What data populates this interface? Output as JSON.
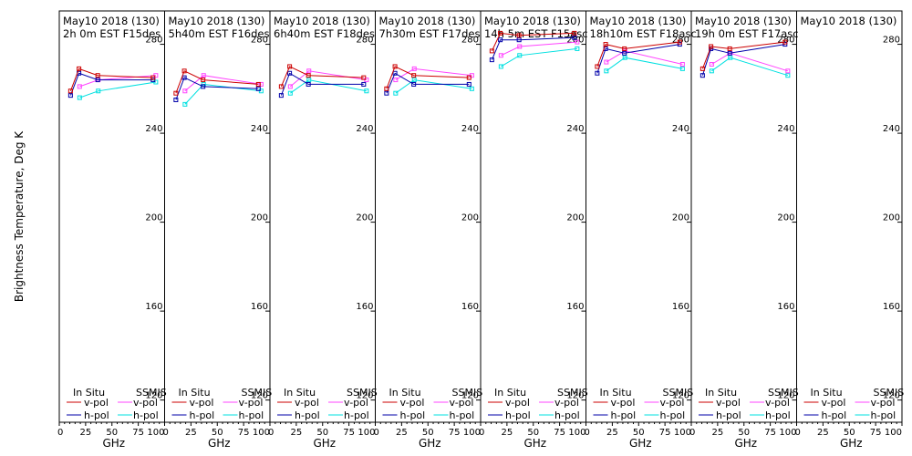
{
  "chart_data": {
    "type": "line",
    "ylabel": "Brightness Temperature, Deg K",
    "xlabel": "GHz",
    "ylim": [
      110,
      295
    ],
    "xlim": [
      0,
      100
    ],
    "yticks": [
      120,
      160,
      200,
      240,
      280
    ],
    "xticks": [
      0,
      25,
      50,
      75,
      100
    ],
    "xtick_labels": [
      "0",
      "25",
      "50",
      "75",
      "100"
    ],
    "colors": {
      "insitu_vpol": "#cc0000",
      "insitu_hpol": "#0000aa",
      "ssmis_vpol": "#ff44ff",
      "ssmis_hpol": "#00e0e0"
    },
    "legend": {
      "insitu_title": "In Situ",
      "ssmis_title": "SSMIS",
      "vpol": "v-pol",
      "hpol": "h-pol"
    },
    "panels": [
      {
        "date": "May10 2018 (130)",
        "subtitle": "2h 0m  EST F15des",
        "insitu_x": [
          10.7,
          18.7,
          36.5,
          89
        ],
        "insitu_v": [
          259,
          269,
          266,
          265
        ],
        "insitu_h": [
          257,
          267,
          264,
          264
        ],
        "ssmis_x": [
          19.35,
          37,
          91.65
        ],
        "ssmis_v": [
          261,
          264,
          266
        ],
        "ssmis_h": [
          256,
          259,
          263
        ]
      },
      {
        "date": "May10 2018 (130)",
        "subtitle": "5h40m  EST F16des",
        "insitu_x": [
          10.7,
          18.7,
          36.5,
          89
        ],
        "insitu_v": [
          258,
          268,
          264,
          262
        ],
        "insitu_h": [
          255,
          265,
          261,
          260
        ],
        "ssmis_x": [
          19.35,
          37,
          91.65
        ],
        "ssmis_v": [
          259,
          266,
          262
        ],
        "ssmis_h": [
          253,
          262,
          259
        ]
      },
      {
        "date": "May10 2018 (130)",
        "subtitle": "6h40m  EST F18des",
        "insitu_x": [
          10.7,
          18.7,
          36.5,
          89
        ],
        "insitu_v": [
          261,
          270,
          266,
          265
        ],
        "insitu_h": [
          257,
          267,
          262,
          262
        ],
        "ssmis_x": [
          19.35,
          37,
          91.65
        ],
        "ssmis_v": [
          261,
          268,
          264
        ],
        "ssmis_h": [
          258,
          264,
          259
        ]
      },
      {
        "date": "May10 2018 (130)",
        "subtitle": "7h30m  EST F17des",
        "insitu_x": [
          10.7,
          18.7,
          36.5,
          89
        ],
        "insitu_v": [
          260,
          270,
          266,
          265
        ],
        "insitu_h": [
          258,
          267,
          262,
          262
        ],
        "ssmis_x": [
          19.35,
          37,
          91.65
        ],
        "ssmis_v": [
          264,
          269,
          266
        ],
        "ssmis_h": [
          258,
          264,
          260
        ]
      },
      {
        "date": "May10 2018 (130)",
        "subtitle": "14h 5m  EST F15asc",
        "insitu_x": [
          10.7,
          18.7,
          36.5,
          89
        ],
        "insitu_v": [
          277,
          285,
          284,
          285
        ],
        "insitu_h": [
          273,
          282,
          282,
          283
        ],
        "ssmis_x": [
          19.35,
          37,
          91.65
        ],
        "ssmis_v": [
          275,
          279,
          281
        ],
        "ssmis_h": [
          270,
          275,
          278
        ]
      },
      {
        "date": "May10 2018 (130)",
        "subtitle": "18h10m  EST F18asc",
        "insitu_x": [
          10.7,
          18.7,
          36.5,
          89
        ],
        "insitu_v": [
          270,
          280,
          278,
          281
        ],
        "insitu_h": [
          267,
          278,
          276,
          280
        ],
        "ssmis_x": [
          19.35,
          37,
          91.65
        ],
        "ssmis_v": [
          272,
          277,
          271
        ],
        "ssmis_h": [
          268,
          274,
          269
        ]
      },
      {
        "date": "May10 2018 (130)",
        "subtitle": "19h 0m  EST F17asc",
        "insitu_x": [
          10.7,
          18.7,
          36.5,
          89
        ],
        "insitu_v": [
          269,
          279,
          278,
          281
        ],
        "insitu_h": [
          266,
          278,
          276,
          280
        ],
        "ssmis_x": [
          19.35,
          37,
          91.65
        ],
        "ssmis_v": [
          271,
          276,
          268
        ],
        "ssmis_h": [
          268,
          274,
          266
        ]
      },
      {
        "date": "May10 2018 (130)",
        "subtitle": "",
        "insitu_x": [],
        "insitu_v": [],
        "insitu_h": [],
        "ssmis_x": [],
        "ssmis_v": [],
        "ssmis_h": []
      }
    ]
  }
}
